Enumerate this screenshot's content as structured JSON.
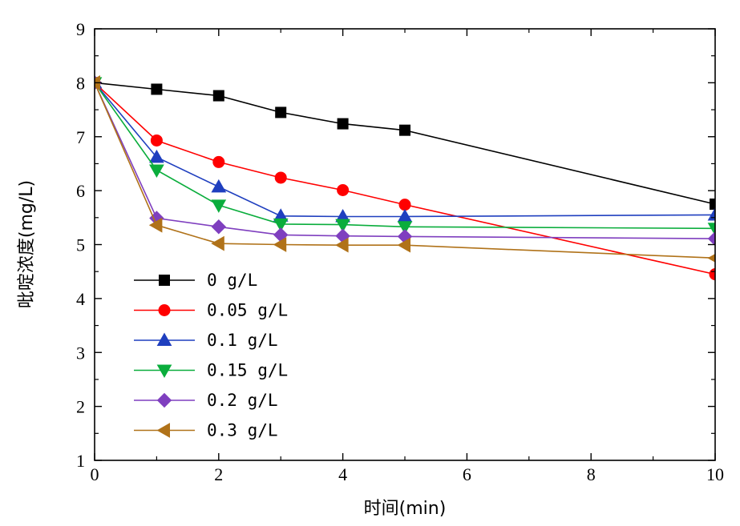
{
  "chart_data": {
    "type": "line",
    "title": "",
    "xlabel": "时间(min)",
    "ylabel": "吡啶浓度(mg/L)",
    "xlim": [
      0,
      10
    ],
    "ylim": [
      1,
      9
    ],
    "x_ticks": [
      0,
      2,
      4,
      6,
      8,
      10
    ],
    "y_ticks": [
      1,
      2,
      3,
      4,
      5,
      6,
      7,
      8,
      9
    ],
    "x_tick_labels": [
      "0",
      "2",
      "4",
      "6",
      "8",
      "10"
    ],
    "y_tick_labels": [
      "1",
      "2",
      "3",
      "4",
      "5",
      "6",
      "7",
      "8",
      "9"
    ],
    "grid": false,
    "legend_position": "bottom-left",
    "series": [
      {
        "name": "0 g/L",
        "color": "#000000",
        "marker": "square",
        "x": [
          0,
          1,
          2,
          3,
          4,
          5,
          10
        ],
        "y": [
          8.0,
          7.88,
          7.76,
          7.45,
          7.24,
          7.12,
          5.75
        ]
      },
      {
        "name": "0.05 g/L",
        "color": "#ff0000",
        "marker": "circle",
        "x": [
          0,
          1,
          2,
          3,
          4,
          5,
          10
        ],
        "y": [
          8.0,
          6.93,
          6.53,
          6.24,
          6.01,
          5.74,
          4.45
        ]
      },
      {
        "name": "0.1 g/L",
        "color": "#1f3fbf",
        "marker": "triangle-up",
        "x": [
          0,
          1,
          2,
          3,
          4,
          5,
          10
        ],
        "y": [
          8.0,
          6.62,
          6.07,
          5.53,
          5.52,
          5.52,
          5.55
        ]
      },
      {
        "name": "0.15 g/L",
        "color": "#0aad3c",
        "marker": "triangle-down",
        "x": [
          0,
          1,
          2,
          3,
          4,
          5,
          10
        ],
        "y": [
          8.0,
          6.38,
          5.73,
          5.38,
          5.37,
          5.33,
          5.3
        ]
      },
      {
        "name": "0.2 g/L",
        "color": "#7f3fbf",
        "marker": "diamond",
        "x": [
          0,
          1,
          2,
          3,
          4,
          5,
          10
        ],
        "y": [
          8.0,
          5.49,
          5.33,
          5.18,
          5.16,
          5.15,
          5.11
        ]
      },
      {
        "name": "0.3 g/L",
        "color": "#b07219",
        "marker": "triangle-left",
        "x": [
          0,
          1,
          2,
          3,
          4,
          5,
          10
        ],
        "y": [
          8.0,
          5.36,
          5.02,
          5.0,
          4.99,
          4.99,
          4.75
        ]
      }
    ]
  }
}
